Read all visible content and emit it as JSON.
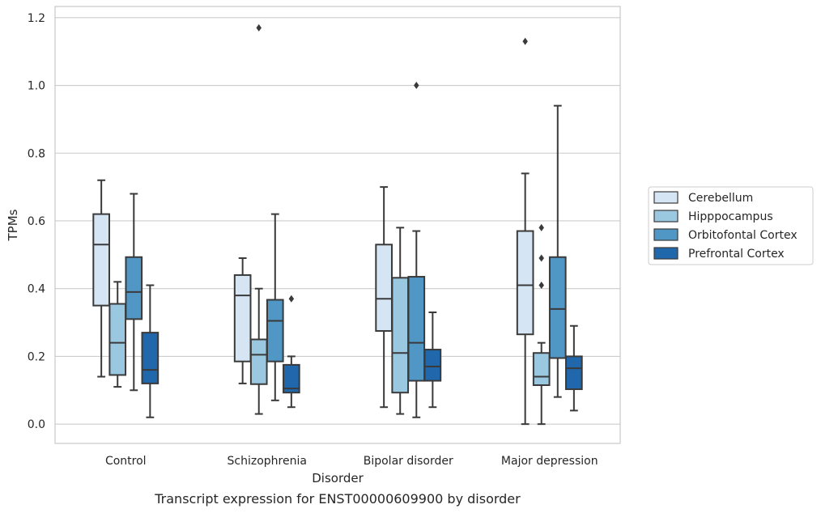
{
  "chart_data": {
    "type": "box",
    "title": "",
    "caption": "Transcript expression for ENST00000609900 by disorder",
    "xlabel": "Disorder",
    "ylabel": "TPMs",
    "ylim": [
      -0.057,
      1.233
    ],
    "yticks": [
      0.0,
      0.2,
      0.4,
      0.6,
      0.8,
      1.0,
      1.2
    ],
    "ytick_labels": [
      "0.0",
      "0.2",
      "0.4",
      "0.6",
      "0.8",
      "1.0",
      "1.2"
    ],
    "grid": "y",
    "legend_position": "right",
    "categories": [
      "Control",
      "Schizophrenia",
      "Bipolar disorder",
      "Major depression"
    ],
    "series": [
      {
        "name": "Cerebellum",
        "color": "#d6e5f4",
        "boxes": [
          {
            "whislo": 0.14,
            "q1": 0.35,
            "med": 0.53,
            "q3": 0.62,
            "whishi": 0.72,
            "fliers": []
          },
          {
            "whislo": 0.12,
            "q1": 0.185,
            "med": 0.38,
            "q3": 0.44,
            "whishi": 0.49,
            "fliers": []
          },
          {
            "whislo": 0.05,
            "q1": 0.275,
            "med": 0.37,
            "q3": 0.53,
            "whishi": 0.7,
            "fliers": []
          },
          {
            "whislo": 0.0,
            "q1": 0.265,
            "med": 0.41,
            "q3": 0.57,
            "whishi": 0.74,
            "fliers": [
              1.13
            ]
          }
        ]
      },
      {
        "name": "Hipppocampus",
        "color": "#9ac8e0",
        "boxes": [
          {
            "whislo": 0.11,
            "q1": 0.145,
            "med": 0.24,
            "q3": 0.355,
            "whishi": 0.42,
            "fliers": []
          },
          {
            "whislo": 0.03,
            "q1": 0.118,
            "med": 0.205,
            "q3": 0.25,
            "whishi": 0.4,
            "fliers": [
              1.17
            ]
          },
          {
            "whislo": 0.03,
            "q1": 0.093,
            "med": 0.21,
            "q3": 0.432,
            "whishi": 0.58,
            "fliers": []
          },
          {
            "whislo": 0.0,
            "q1": 0.115,
            "med": 0.14,
            "q3": 0.21,
            "whishi": 0.24,
            "fliers": [
              0.58,
              0.49,
              0.41
            ]
          }
        ]
      },
      {
        "name": "Orbitofontal Cortex",
        "color": "#5097c6",
        "boxes": [
          {
            "whislo": 0.1,
            "q1": 0.31,
            "med": 0.39,
            "q3": 0.493,
            "whishi": 0.68,
            "fliers": []
          },
          {
            "whislo": 0.07,
            "q1": 0.185,
            "med": 0.305,
            "q3": 0.367,
            "whishi": 0.62,
            "fliers": []
          },
          {
            "whislo": 0.02,
            "q1": 0.128,
            "med": 0.24,
            "q3": 0.435,
            "whishi": 0.57,
            "fliers": [
              1.0
            ]
          },
          {
            "whislo": 0.08,
            "q1": 0.195,
            "med": 0.34,
            "q3": 0.493,
            "whishi": 0.94,
            "fliers": []
          }
        ]
      },
      {
        "name": "Prefrontal Cortex",
        "color": "#2067ac",
        "boxes": [
          {
            "whislo": 0.02,
            "q1": 0.12,
            "med": 0.16,
            "q3": 0.27,
            "whishi": 0.41,
            "fliers": []
          },
          {
            "whislo": 0.05,
            "q1": 0.093,
            "med": 0.105,
            "q3": 0.175,
            "whishi": 0.2,
            "fliers": [
              0.37
            ]
          },
          {
            "whislo": 0.05,
            "q1": 0.128,
            "med": 0.17,
            "q3": 0.22,
            "whishi": 0.33,
            "fliers": []
          },
          {
            "whislo": 0.04,
            "q1": 0.103,
            "med": 0.165,
            "q3": 0.2,
            "whishi": 0.29,
            "fliers": []
          }
        ]
      }
    ]
  }
}
